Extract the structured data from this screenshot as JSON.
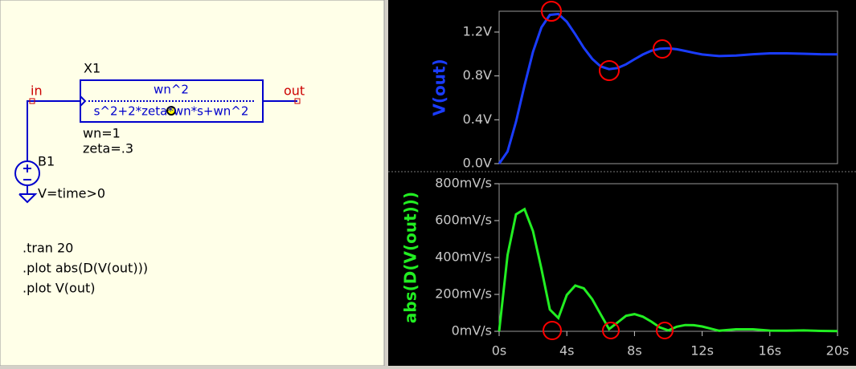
{
  "schematic": {
    "block_name": "X1",
    "in_label": "in",
    "out_label": "out",
    "numerator": "wn^2",
    "denominator": "s^2+2*zeta*wn*s+wn^2",
    "params": [
      "wn=1",
      "zeta=.3"
    ],
    "source_name": "B1",
    "source_value": "V=time>0",
    "directives": [
      ".tran 20",
      ".plot abs(D(V(out)))",
      ".plot V(out)"
    ]
  },
  "chart_data": [
    {
      "type": "line",
      "ylabel": "V(out)",
      "color": "#1a3cff",
      "x": [
        0,
        0.5,
        1,
        1.5,
        2,
        2.5,
        3,
        3.5,
        4,
        4.5,
        5,
        5.5,
        6,
        6.5,
        7,
        7.5,
        8,
        8.5,
        9,
        9.5,
        10,
        10.5,
        11,
        11.5,
        12,
        13,
        14,
        15,
        16,
        17,
        18,
        19,
        20
      ],
      "values": [
        0,
        0.111,
        0.382,
        0.713,
        1.019,
        1.242,
        1.356,
        1.365,
        1.294,
        1.18,
        1.057,
        0.956,
        0.887,
        0.862,
        0.872,
        0.906,
        0.952,
        0.996,
        1.03,
        1.048,
        1.051,
        1.043,
        1.028,
        1.011,
        0.996,
        0.981,
        0.986,
        0.998,
        1.006,
        1.006,
        1.002,
        0.998,
        0.997
      ],
      "xlim": [
        0,
        20
      ],
      "ylim": [
        0,
        1.39
      ],
      "yticks": [
        {
          "value": 0,
          "label": "0.0V"
        },
        {
          "value": 0.4,
          "label": "0.4V"
        },
        {
          "value": 0.8,
          "label": "0.8V"
        },
        {
          "value": 1.2,
          "label": "1.2V"
        }
      ]
    },
    {
      "type": "line",
      "ylabel": "abs(D(V(out)))",
      "color": "#22ee22",
      "x": [
        0,
        0.5,
        1,
        1.5,
        2,
        2.5,
        3,
        3.5,
        4,
        4.5,
        5,
        5.5,
        6,
        6.5,
        7,
        7.5,
        8,
        8.5,
        9,
        9.5,
        10,
        10.5,
        11,
        11.5,
        12,
        13,
        14,
        15,
        16,
        17,
        18,
        19,
        20
      ],
      "values": [
        0,
        414,
        634,
        662,
        543,
        339,
        118,
        72,
        197,
        248,
        233,
        174,
        92,
        12,
        48,
        84,
        93,
        79,
        52,
        21,
        5,
        25,
        34,
        33,
        26,
        3,
        11,
        11,
        4,
        3,
        5,
        2,
        1
      ],
      "xlim": [
        0,
        20
      ],
      "ylim": [
        0,
        800
      ],
      "yticks": [
        {
          "value": 0,
          "label": "0mV/s"
        },
        {
          "value": 200,
          "label": "200mV/s"
        },
        {
          "value": 400,
          "label": "400mV/s"
        },
        {
          "value": 600,
          "label": "600mV/s"
        },
        {
          "value": 800,
          "label": "800mV/s"
        }
      ],
      "xticks": [
        {
          "value": 0,
          "label": "0s"
        },
        {
          "value": 4,
          "label": "4s"
        },
        {
          "value": 8,
          "label": "8s"
        },
        {
          "value": 12,
          "label": "12s"
        },
        {
          "value": 16,
          "label": "16s"
        },
        {
          "value": 20,
          "label": "20s"
        }
      ]
    }
  ]
}
